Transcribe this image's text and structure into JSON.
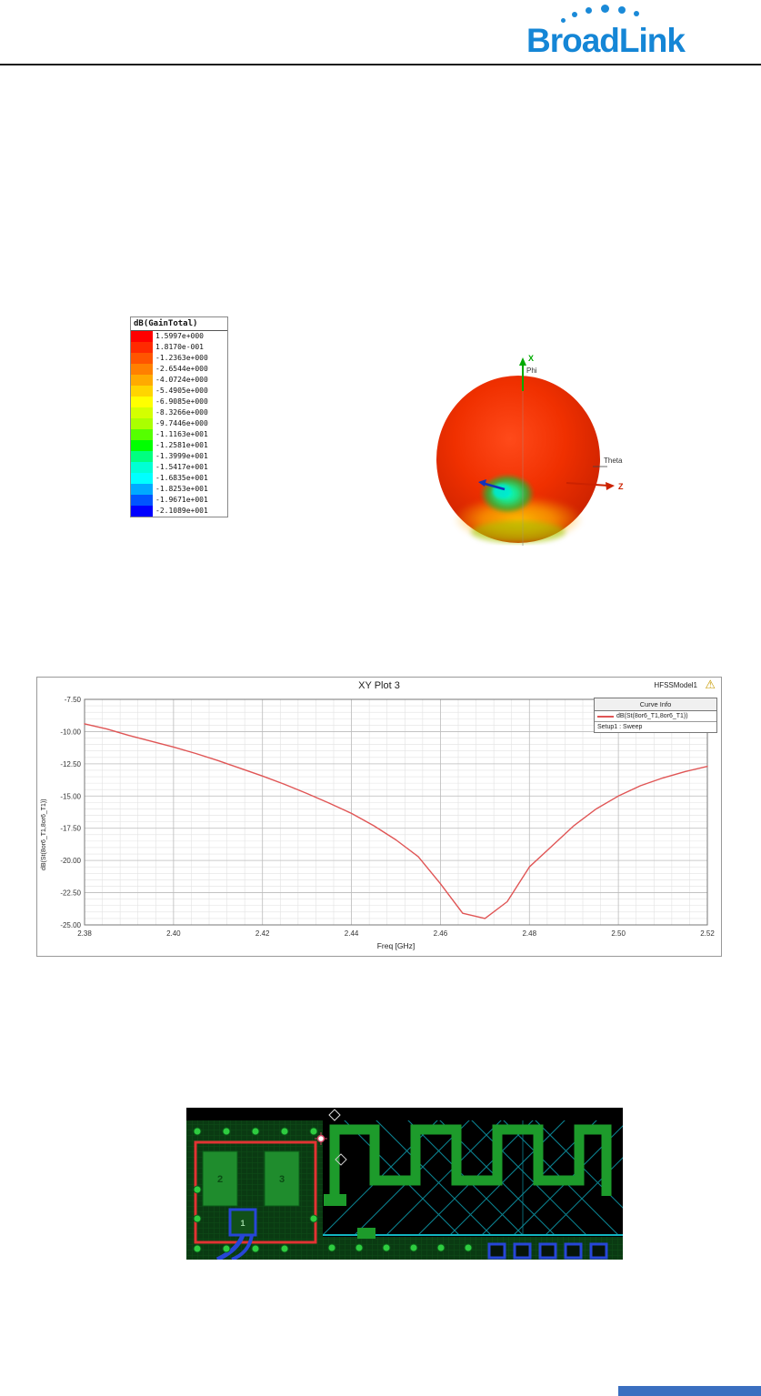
{
  "header": {
    "brand": "BroadLink"
  },
  "legend": {
    "title": "dB(GainTotal)",
    "entries": [
      {
        "label": "1.5997e+000",
        "color": "#ff0000"
      },
      {
        "label": "1.8170e-001",
        "color": "#ff2a00"
      },
      {
        "label": "-1.2363e+000",
        "color": "#ff5500"
      },
      {
        "label": "-2.6544e+000",
        "color": "#ff8000"
      },
      {
        "label": "-4.0724e+000",
        "color": "#ffaa00"
      },
      {
        "label": "-5.4905e+000",
        "color": "#ffd500"
      },
      {
        "label": "-6.9085e+000",
        "color": "#ffff00"
      },
      {
        "label": "-8.3266e+000",
        "color": "#d4ff00"
      },
      {
        "label": "-9.7446e+000",
        "color": "#aaff00"
      },
      {
        "label": "-1.1163e+001",
        "color": "#55ff00"
      },
      {
        "label": "-1.2581e+001",
        "color": "#00ff00"
      },
      {
        "label": "-1.3999e+001",
        "color": "#00ff80"
      },
      {
        "label": "-1.5417e+001",
        "color": "#00ffd4"
      },
      {
        "label": "-1.6835e+001",
        "color": "#00ffff"
      },
      {
        "label": "-1.8253e+001",
        "color": "#00aaff"
      },
      {
        "label": "-1.9671e+001",
        "color": "#0055ff"
      },
      {
        "label": "-2.1089e+001",
        "color": "#0000ff"
      }
    ]
  },
  "pattern3d": {
    "x_label": "X",
    "phi_label": "Phi",
    "theta_label": "Theta",
    "z_label": "Z"
  },
  "chart_data": {
    "type": "line",
    "title": "XY Plot 3",
    "model_label": "HFSSModel1",
    "warning_icon": "⚠",
    "xlabel": "Freq [GHz]",
    "ylabel": "dB(St(8or6_T1,8or6_T1))",
    "xlim": [
      2.38,
      2.52
    ],
    "ylim": [
      -25.0,
      -7.5
    ],
    "x_minor": 0.004,
    "y_minor": 0.5,
    "x_ticks": [
      "2.38",
      "2.40",
      "2.42",
      "2.44",
      "2.46",
      "2.48",
      "2.50",
      "2.52"
    ],
    "y_ticks": [
      "-7.50",
      "-10.00",
      "-12.50",
      "-15.00",
      "-17.50",
      "-20.00",
      "-22.50",
      "-25.00"
    ],
    "grid": true,
    "legend_position": "top-right",
    "legend": {
      "header": "Curve Info",
      "trace": "dB(St(8or6_T1,8or6_T1))",
      "setup": "Setup1 : Sweep"
    },
    "series": [
      {
        "name": "dB(St(8or6_T1,8or6_T1))",
        "color": "#e05555",
        "x": [
          2.38,
          2.385,
          2.39,
          2.395,
          2.4,
          2.405,
          2.41,
          2.415,
          2.42,
          2.425,
          2.43,
          2.435,
          2.44,
          2.445,
          2.45,
          2.455,
          2.46,
          2.465,
          2.47,
          2.475,
          2.48,
          2.485,
          2.49,
          2.495,
          2.5,
          2.505,
          2.51,
          2.515,
          2.52
        ],
        "y": [
          -9.4,
          -9.8,
          -10.3,
          -10.75,
          -11.2,
          -11.7,
          -12.25,
          -12.85,
          -13.45,
          -14.1,
          -14.8,
          -15.55,
          -16.35,
          -17.3,
          -18.4,
          -19.7,
          -21.8,
          -24.1,
          -24.5,
          -23.2,
          -20.5,
          -18.9,
          -17.3,
          -16.0,
          -15.0,
          -14.2,
          -13.6,
          -13.1,
          -12.7
        ]
      }
    ]
  },
  "pcb": {
    "pad1": "1",
    "pad2": "2",
    "pad3": "3"
  }
}
